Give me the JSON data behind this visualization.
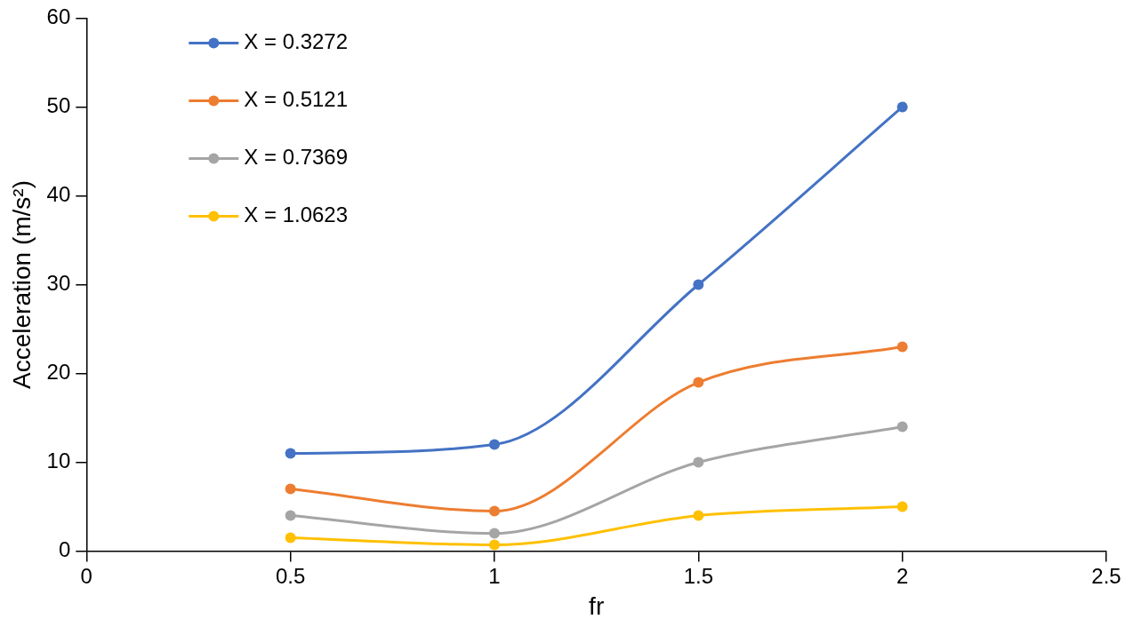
{
  "chart_data": {
    "type": "line",
    "xlabel": "fr",
    "ylabel": "Acceleration (m/s²)",
    "x": [
      0.5,
      1,
      1.5,
      2
    ],
    "series": [
      {
        "name": "X = 0.3272",
        "color": "#4472c4",
        "values": [
          11,
          12,
          30,
          50
        ]
      },
      {
        "name": "X = 0.5121",
        "color": "#ed7d31",
        "values": [
          7,
          4.5,
          19,
          23
        ]
      },
      {
        "name": "X = 0.7369",
        "color": "#a5a5a5",
        "values": [
          4,
          2,
          10,
          14
        ]
      },
      {
        "name": "X = 1.0623",
        "color": "#ffc000",
        "values": [
          1.5,
          0.7,
          4,
          5
        ]
      }
    ],
    "xlim": [
      0,
      2.5
    ],
    "xticks": [
      0,
      0.5,
      1,
      1.5,
      2,
      2.5
    ],
    "ylim": [
      0,
      60
    ],
    "yticks": [
      0,
      10,
      20,
      30,
      40,
      50,
      60
    ],
    "grid": false,
    "legend": "top left",
    "marker": "circle",
    "line_style": "solid"
  }
}
